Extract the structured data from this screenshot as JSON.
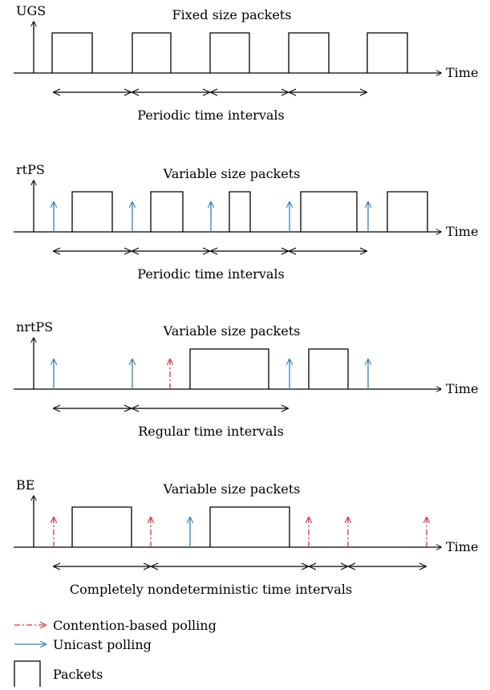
{
  "colors": {
    "unicast": "#2f7fc1",
    "contention": "#e03030",
    "ink": "#000000"
  },
  "panels": [
    {
      "id": "ugs",
      "label": "UGS",
      "title": "Fixed size packets",
      "axis_label": "Time",
      "interval_text": "Periodic time intervals",
      "packets": [
        [
          65,
          115
        ],
        [
          165,
          213
        ],
        [
          262,
          311
        ],
        [
          360,
          410
        ],
        [
          458,
          508
        ]
      ],
      "polls": [],
      "intervals": [
        [
          67,
          163
        ],
        [
          165,
          261
        ],
        [
          263,
          359
        ],
        [
          361,
          457
        ]
      ]
    },
    {
      "id": "rtps",
      "label": "rtPS",
      "title": "Variable size packets",
      "axis_label": "Time",
      "interval_text": "Periodic time intervals",
      "packets": [
        [
          90,
          140
        ],
        [
          188,
          228
        ],
        [
          286,
          312
        ],
        [
          375,
          445
        ],
        [
          483,
          533
        ]
      ],
      "polls": [
        {
          "x": 67,
          "type": "unicast"
        },
        {
          "x": 165,
          "type": "unicast"
        },
        {
          "x": 263,
          "type": "unicast"
        },
        {
          "x": 361,
          "type": "unicast"
        },
        {
          "x": 459,
          "type": "unicast"
        }
      ],
      "intervals": [
        [
          67,
          163
        ],
        [
          165,
          261
        ],
        [
          263,
          359
        ],
        [
          361,
          457
        ]
      ]
    },
    {
      "id": "nrtps",
      "label": "nrtPS",
      "title": "Variable size packets",
      "axis_label": "Time",
      "interval_text": "Regular time intervals",
      "packets": [
        [
          237,
          335
        ],
        [
          385,
          434
        ]
      ],
      "polls": [
        {
          "x": 67,
          "type": "unicast"
        },
        {
          "x": 165,
          "type": "unicast"
        },
        {
          "x": 212,
          "type": "contention"
        },
        {
          "x": 361,
          "type": "unicast"
        },
        {
          "x": 459,
          "type": "unicast"
        }
      ],
      "intervals": [
        [
          67,
          163
        ],
        [
          165,
          359
        ]
      ]
    },
    {
      "id": "be",
      "label": "BE",
      "title": "Variable size packets",
      "axis_label": "Time",
      "interval_text": "Completely nondeterministic time intervals",
      "packets": [
        [
          90,
          164
        ],
        [
          262,
          361
        ]
      ],
      "polls": [
        {
          "x": 67,
          "type": "contention"
        },
        {
          "x": 188,
          "type": "contention"
        },
        {
          "x": 237,
          "type": "unicast"
        },
        {
          "x": 385,
          "type": "contention"
        },
        {
          "x": 434,
          "type": "contention"
        },
        {
          "x": 532,
          "type": "contention"
        }
      ],
      "intervals": [
        [
          67,
          187
        ],
        [
          189,
          384
        ],
        [
          386,
          433
        ],
        [
          435,
          531
        ]
      ]
    }
  ],
  "legend": {
    "contention_label": "Contention-based polling",
    "unicast_label": "Unicast polling",
    "packets_label": "Packets"
  }
}
